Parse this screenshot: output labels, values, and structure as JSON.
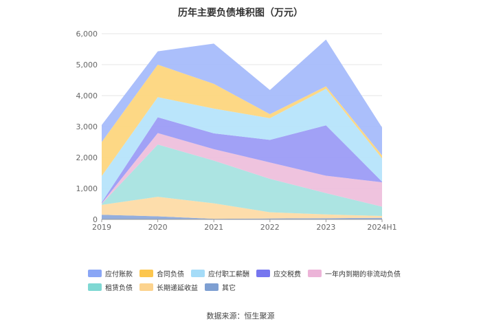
{
  "chart_data": {
    "type": "area",
    "title": "历年主要负债堆积图（万元）",
    "x": [
      "2019",
      "2020",
      "2021",
      "2022",
      "2023",
      "2024H1"
    ],
    "ylim": [
      0,
      6000
    ],
    "yticks": [
      "0",
      "1,000",
      "2,000",
      "3,000",
      "4,000",
      "5,000",
      "6,000"
    ],
    "grid": true,
    "legend_position": "bottom",
    "stacked": true,
    "series": [
      {
        "name": "其它",
        "color": "#8eaadb",
        "values": [
          150,
          100,
          20,
          30,
          40,
          50
        ]
      },
      {
        "name": "长期递延收益",
        "color": "#fddba6",
        "values": [
          320,
          630,
          500,
          200,
          120,
          60
        ]
      },
      {
        "name": "租赁负债",
        "color": "#a8e3e0",
        "values": [
          30,
          1690,
          1380,
          1080,
          690,
          300
        ]
      },
      {
        "name": "一年内到期的非流动负债",
        "color": "#eec0dc",
        "values": [
          20,
          370,
          370,
          530,
          560,
          790
        ]
      },
      {
        "name": "应交税费",
        "color": "#9c9cf5",
        "values": [
          30,
          510,
          510,
          730,
          1630,
          20
        ]
      },
      {
        "name": "应付职工薪酬",
        "color": "#b6e4fb",
        "values": [
          850,
          650,
          800,
          700,
          1180,
          750
        ]
      },
      {
        "name": "合同负债",
        "color": "#fdd67e",
        "values": [
          1100,
          1050,
          800,
          130,
          80,
          100
        ]
      },
      {
        "name": "应付账款",
        "color": "#a6bcfb",
        "values": [
          550,
          430,
          1300,
          780,
          1510,
          900
        ]
      }
    ]
  },
  "legend": {
    "row1": [
      {
        "name": "应付账款",
        "color": "#8aa6f5"
      },
      {
        "name": "合同负债",
        "color": "#fcc64e"
      },
      {
        "name": "应付职工薪酬",
        "color": "#a5dcf8"
      },
      {
        "name": "应交税费",
        "color": "#7676ef"
      },
      {
        "name": "一年内到期的非流动负债",
        "color": "#ecb4d8"
      }
    ],
    "row2": [
      {
        "name": "租赁负债",
        "color": "#7fd8d3"
      },
      {
        "name": "长期递延收益",
        "color": "#fcd38e"
      },
      {
        "name": "其它",
        "color": "#7e9fd2"
      }
    ]
  },
  "source": "数据来源：恒生聚源"
}
